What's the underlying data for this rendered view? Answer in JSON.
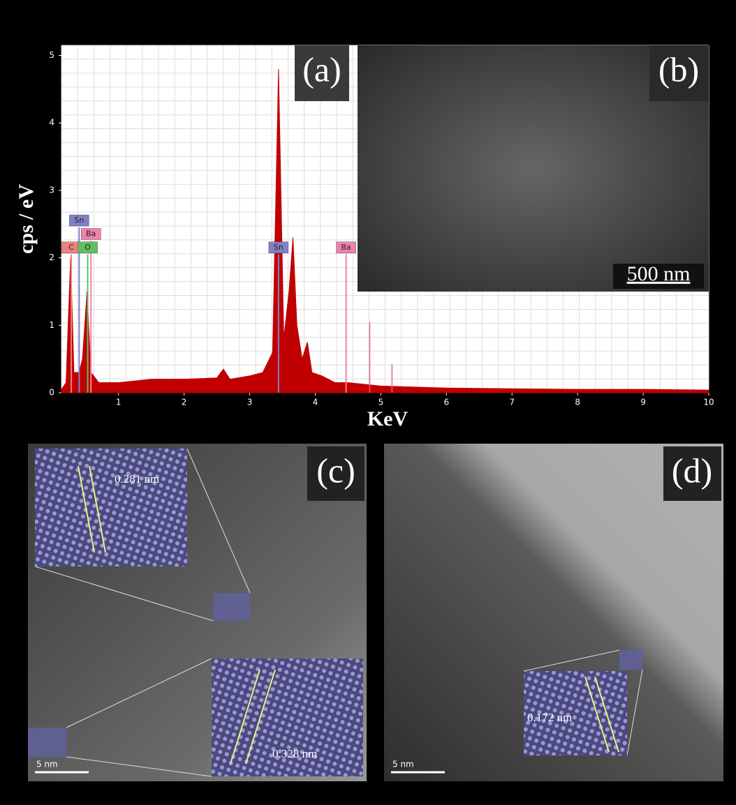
{
  "chart_data": {
    "type": "area",
    "x_label": "KeV",
    "y_label": "cps / eV",
    "x": [
      0.13,
      0.2,
      0.27,
      0.32,
      0.4,
      0.45,
      0.52,
      0.58,
      0.7,
      1.0,
      1.5,
      2.0,
      2.5,
      2.6,
      2.7,
      3.0,
      3.2,
      3.35,
      3.44,
      3.52,
      3.6,
      3.66,
      3.72,
      3.8,
      3.88,
      3.95,
      4.1,
      4.3,
      4.5,
      5.0,
      6.0,
      7.0,
      8.0,
      9.0,
      10.0
    ],
    "series": [
      {
        "color": "#c00000",
        "values": [
          0.05,
          0.15,
          2.0,
          0.3,
          0.3,
          0.5,
          1.5,
          0.3,
          0.15,
          0.15,
          0.2,
          0.2,
          0.22,
          0.35,
          0.2,
          0.25,
          0.3,
          0.6,
          4.8,
          0.8,
          1.5,
          2.3,
          1.0,
          0.5,
          0.75,
          0.3,
          0.25,
          0.15,
          0.15,
          0.1,
          0.07,
          0.06,
          0.05,
          0.05,
          0.04
        ]
      }
    ],
    "markers": [
      {
        "label": "C",
        "x": 0.28,
        "y": 2.05,
        "color": "#f08080"
      },
      {
        "label": "Sn",
        "x": 0.4,
        "y": 2.45,
        "color": "#8080c8"
      },
      {
        "label": "Ba",
        "x": 0.58,
        "y": 2.25,
        "color": "#f080b0"
      },
      {
        "label": "O",
        "x": 0.53,
        "y": 2.05,
        "color": "#60c060"
      },
      {
        "label": "Sn",
        "x": 3.44,
        "y": 2.05,
        "color": "#8080c8"
      },
      {
        "label": "Ba",
        "x": 4.47,
        "y": 2.05,
        "color": "#f080b0"
      }
    ],
    "lines": [
      {
        "x": 4.83,
        "y": 1.05,
        "color": "#e060a0"
      },
      {
        "x": 5.17,
        "y": 0.42,
        "color": "#e060a0"
      }
    ],
    "xlim": [
      0.13,
      10
    ],
    "xticks": [
      1,
      2,
      3,
      4,
      5,
      6,
      7,
      8,
      9,
      10
    ],
    "ylim": [
      0,
      5.15
    ],
    "yticks": [
      0,
      1,
      2,
      3,
      4,
      5
    ],
    "grid": true
  },
  "panels": {
    "a": "(a)",
    "b": "(b)",
    "c": "(c)",
    "d": "(d)",
    "b_scale": "500 nm",
    "c_spacing_1": "0.281 nm",
    "c_spacing_2": "0.328 nm",
    "c_scale": "5 nm",
    "d_spacing": "0.172 nm",
    "d_scale": "5 nm"
  }
}
